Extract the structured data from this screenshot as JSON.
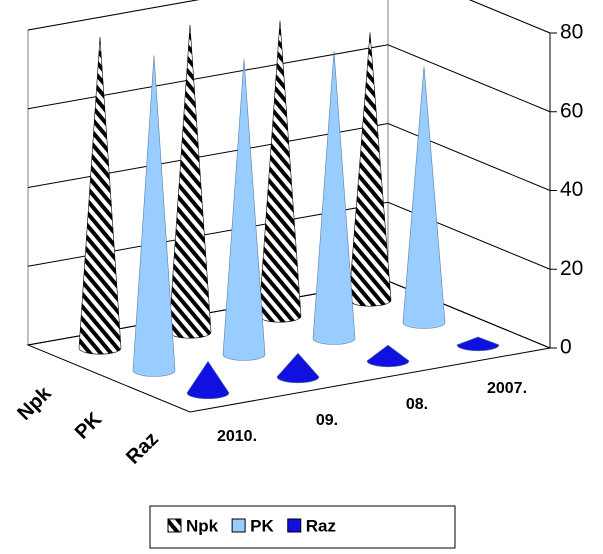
{
  "chart_data": {
    "type": "cone3d",
    "categories": [
      "2010.",
      "09.",
      "08.",
      "2007."
    ],
    "series": [
      {
        "name": "Npk",
        "color": "#000000",
        "values": [
          79,
          78,
          75,
          68
        ]
      },
      {
        "name": "PK",
        "color": "#99ccff",
        "values": [
          80,
          75,
          73,
          65
        ]
      },
      {
        "name": "Raz",
        "color": "#1010e0",
        "values": [
          8,
          6,
          4,
          2
        ]
      }
    ],
    "ylim": [
      0,
      80
    ],
    "yticks": [
      0,
      20,
      40,
      60,
      80
    ],
    "grid": true,
    "legend": "bottom"
  }
}
